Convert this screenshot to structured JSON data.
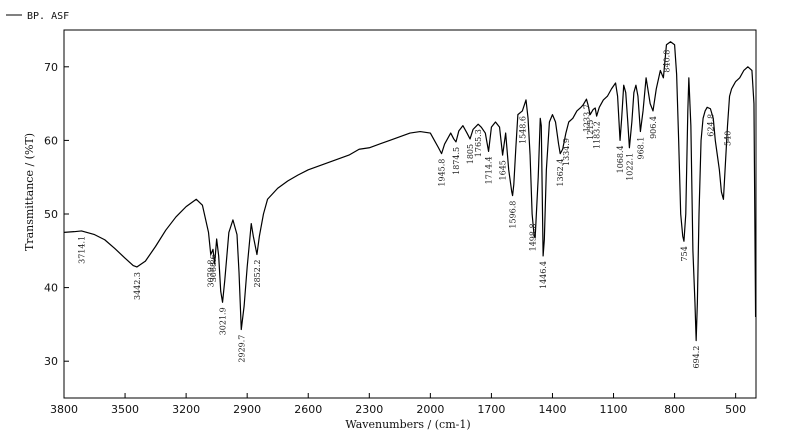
{
  "chart_data": {
    "type": "line",
    "legend": {
      "entry": "BP. ASF",
      "placement": "top-left"
    },
    "xlabel": "Wavenumbers / (cm-1)",
    "ylabel": "Transmittance / (%T)",
    "xlim": [
      3800,
      400
    ],
    "ylim": [
      25,
      75
    ],
    "x_reversed": true,
    "xticks": [
      3800,
      3500,
      3200,
      2900,
      2600,
      2300,
      2000,
      1700,
      1400,
      1100,
      800,
      500
    ],
    "xtick_labels": [
      "3800",
      "3500",
      "3200",
      "2900",
      "2600",
      "2300",
      "2000",
      "1700",
      "1400",
      "1100",
      "800",
      "500"
    ],
    "yticks": [
      30,
      40,
      50,
      60,
      70
    ],
    "ytick_labels": [
      "30",
      "40",
      "50",
      "60",
      "70"
    ],
    "line_color": "#000000",
    "series": [
      {
        "x": [
          3800,
          3750,
          3714,
          3650,
          3600,
          3550,
          3500,
          3460,
          3442,
          3400,
          3350,
          3300,
          3250,
          3200,
          3150,
          3120,
          3090,
          3079,
          3068,
          3060,
          3050,
          3040,
          3030,
          3021,
          3010,
          2990,
          2970,
          2950,
          2940,
          2929,
          2915,
          2900,
          2880,
          2870,
          2852,
          2840,
          2820,
          2800,
          2750,
          2700,
          2650,
          2600,
          2500,
          2400,
          2350,
          2300,
          2200,
          2100,
          2050,
          2000,
          1980,
          1960,
          1945,
          1930,
          1900,
          1885,
          1874,
          1860,
          1840,
          1820,
          1805,
          1790,
          1765,
          1750,
          1730,
          1714,
          1700,
          1680,
          1660,
          1645,
          1630,
          1615,
          1600,
          1596,
          1590,
          1580,
          1570,
          1548,
          1530,
          1520,
          1510,
          1500,
          1490,
          1485,
          1470,
          1460,
          1455,
          1446,
          1440,
          1430,
          1415,
          1400,
          1385,
          1370,
          1362,
          1350,
          1334,
          1320,
          1300,
          1280,
          1260,
          1250,
          1233,
          1225,
          1215,
          1200,
          1190,
          1183,
          1170,
          1150,
          1130,
          1110,
          1090,
          1080,
          1068,
          1060,
          1050,
          1040,
          1030,
          1022,
          1010,
          1000,
          990,
          980,
          968,
          955,
          940,
          920,
          906,
          890,
          870,
          855,
          840,
          820,
          800,
          790,
          780,
          770,
          760,
          754,
          745,
          735,
          730,
          720,
          710,
          700,
          694,
          688,
          680,
          670,
          660,
          650,
          640,
          624,
          610,
          600,
          590,
          580,
          570,
          560,
          550,
          540,
          530,
          520,
          510,
          500,
          480,
          460,
          440,
          420,
          410,
          402
        ],
        "y": [
          47.5,
          47.6,
          47.7,
          47.2,
          46.5,
          45.3,
          44.0,
          43.0,
          42.8,
          43.6,
          45.6,
          47.8,
          49.6,
          51.0,
          52.0,
          51.2,
          47.5,
          44.5,
          45.2,
          43.2,
          46.6,
          44.3,
          39.5,
          38.0,
          41.0,
          47.5,
          49.2,
          47.2,
          42.0,
          34.3,
          37.5,
          42.8,
          48.7,
          47.0,
          44.5,
          47.0,
          50.0,
          52.0,
          53.5,
          54.5,
          55.3,
          56.0,
          57.0,
          58.0,
          58.8,
          59.0,
          60.0,
          61.0,
          61.2,
          61.0,
          60.0,
          59.0,
          58.2,
          59.5,
          61.0,
          60.2,
          59.8,
          61.3,
          62.0,
          61.0,
          60.2,
          61.5,
          62.2,
          61.8,
          61.0,
          58.5,
          61.8,
          62.5,
          61.8,
          58.0,
          61.0,
          56.0,
          53.0,
          52.5,
          54.0,
          59.0,
          63.5,
          64.0,
          65.5,
          63.0,
          58.0,
          50.0,
          47.0,
          46.8,
          55.0,
          63.0,
          62.0,
          44.3,
          46.5,
          56.0,
          62.5,
          63.5,
          62.5,
          59.5,
          58.2,
          58.8,
          61.0,
          62.5,
          63.0,
          64.0,
          64.5,
          64.8,
          65.6,
          64.8,
          63.5,
          64.2,
          64.4,
          63.3,
          64.5,
          65.5,
          66.0,
          67.0,
          67.8,
          66.0,
          60.0,
          63.0,
          67.5,
          66.5,
          62.5,
          59.0,
          62.5,
          66.5,
          67.5,
          66.0,
          61.2,
          64.0,
          68.5,
          65.0,
          64.0,
          67.0,
          69.5,
          68.5,
          73.0,
          73.4,
          73.0,
          69.0,
          60.0,
          50.0,
          47.0,
          46.3,
          50.0,
          64.0,
          68.5,
          62.0,
          45.0,
          38.0,
          32.8,
          38.0,
          50.0,
          60.0,
          63.0,
          64.0,
          64.5,
          64.3,
          63.0,
          60.0,
          58.0,
          56.0,
          53.0,
          52.0,
          57.0,
          62.0,
          66.0,
          67.0,
          67.5,
          68.0,
          68.5,
          69.5,
          70.0,
          69.5,
          65.0,
          36.0
        ]
      }
    ],
    "peak_labels": [
      {
        "x": 3714,
        "text": "3714.1"
      },
      {
        "x": 3442,
        "text": "3442.3"
      },
      {
        "x": 3079,
        "text": "3079.8"
      },
      {
        "x": 3068,
        "text": "3068.6"
      },
      {
        "x": 3021,
        "text": "3021.9"
      },
      {
        "x": 2929,
        "text": "2929.7"
      },
      {
        "x": 2852,
        "text": "2852.2"
      },
      {
        "x": 1945,
        "text": "1945.8"
      },
      {
        "x": 1874,
        "text": "1874.5"
      },
      {
        "x": 1805,
        "text": "1805"
      },
      {
        "x": 1765,
        "text": "1765.3"
      },
      {
        "x": 1714,
        "text": "1714.4"
      },
      {
        "x": 1645,
        "text": "1645"
      },
      {
        "x": 1596,
        "text": "1596.8"
      },
      {
        "x": 1548,
        "text": "1548.6"
      },
      {
        "x": 1498,
        "text": "1498.8"
      },
      {
        "x": 1446,
        "text": "1446.4"
      },
      {
        "x": 1362,
        "text": "1362.4"
      },
      {
        "x": 1334,
        "text": "1334.9"
      },
      {
        "x": 1233,
        "text": "1233.7"
      },
      {
        "x": 1215,
        "text": "1215"
      },
      {
        "x": 1183,
        "text": "1183.2"
      },
      {
        "x": 1068,
        "text": "1068.4"
      },
      {
        "x": 1022,
        "text": "1022.1"
      },
      {
        "x": 968,
        "text": "968.1"
      },
      {
        "x": 906,
        "text": "906.4"
      },
      {
        "x": 840,
        "text": "840.8"
      },
      {
        "x": 754,
        "text": "754"
      },
      {
        "x": 694,
        "text": "694.2"
      },
      {
        "x": 624,
        "text": "624.8"
      },
      {
        "x": 540,
        "text": "540"
      }
    ]
  }
}
